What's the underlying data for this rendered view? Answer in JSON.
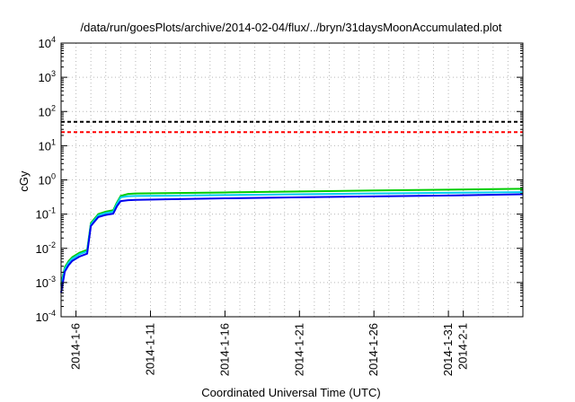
{
  "chart_data": {
    "type": "line",
    "title": "/data/run/goesPlots/archive/2014-02-04/flux/../bryn/31daysMoonAccumulated.plot",
    "xlabel": "Coordinated Universal Time (UTC)",
    "ylabel": "cGy",
    "yscale": "log",
    "ylim": [
      0.0001,
      10000
    ],
    "xlim": [
      "2014-01-05",
      "2014-02-05"
    ],
    "grid": true,
    "y_ticks": [
      {
        "value": 0.0001,
        "base": "10",
        "exp": "-4"
      },
      {
        "value": 0.001,
        "base": "10",
        "exp": "-3"
      },
      {
        "value": 0.01,
        "base": "10",
        "exp": "-2"
      },
      {
        "value": 0.1,
        "base": "10",
        "exp": "-1"
      },
      {
        "value": 1,
        "base": "10",
        "exp": "0"
      },
      {
        "value": 10,
        "base": "10",
        "exp": "1"
      },
      {
        "value": 100,
        "base": "10",
        "exp": "2"
      },
      {
        "value": 1000,
        "base": "10",
        "exp": "3"
      },
      {
        "value": 10000,
        "base": "10",
        "exp": "4"
      }
    ],
    "x_ticks": [
      {
        "date": "2014-01-06",
        "label": "2014-1-6"
      },
      {
        "date": "2014-01-11",
        "label": "2014-1-11"
      },
      {
        "date": "2014-01-16",
        "label": "2014-1-16"
      },
      {
        "date": "2014-01-21",
        "label": "2014-1-21"
      },
      {
        "date": "2014-01-26",
        "label": "2014-1-26"
      },
      {
        "date": "2014-01-31",
        "label": "2014-1-31"
      },
      {
        "date": "2014-02-01",
        "label": "2014-2-1"
      }
    ],
    "reference_lines": [
      {
        "value": 50,
        "color": "#000000",
        "style": "dashed"
      },
      {
        "value": 25,
        "color": "#ff0000",
        "style": "dashed"
      }
    ],
    "series": [
      {
        "color": "#00cc00",
        "x": [
          "2014-01-05 00:00",
          "2014-01-05 06:00",
          "2014-01-05 12:00",
          "2014-01-05 18:00",
          "2014-01-06 06:00",
          "2014-01-06 18:00",
          "2014-01-07 00:00",
          "2014-01-07 12:00",
          "2014-01-08 00:00",
          "2014-01-08 12:00",
          "2014-01-08 18:00",
          "2014-01-09 00:00",
          "2014-01-09 12:00",
          "2014-01-10 00:00",
          "2014-01-12 00:00",
          "2014-01-16 00:00",
          "2014-01-21 00:00",
          "2014-01-26 00:00",
          "2014-01-31 00:00",
          "2014-02-05 00:00"
        ],
        "y": [
          0.0009,
          0.0028,
          0.0042,
          0.0055,
          0.0075,
          0.009,
          0.055,
          0.1,
          0.118,
          0.13,
          0.22,
          0.34,
          0.39,
          0.4,
          0.41,
          0.43,
          0.46,
          0.49,
          0.52,
          0.55
        ]
      },
      {
        "color": "#00ccee",
        "x": [
          "2014-01-05 00:00",
          "2014-01-05 06:00",
          "2014-01-05 12:00",
          "2014-01-05 18:00",
          "2014-01-06 06:00",
          "2014-01-06 18:00",
          "2014-01-07 00:00",
          "2014-01-07 12:00",
          "2014-01-08 00:00",
          "2014-01-08 12:00",
          "2014-01-08 18:00",
          "2014-01-09 00:00",
          "2014-01-09 12:00",
          "2014-01-10 00:00",
          "2014-01-12 00:00",
          "2014-01-16 00:00",
          "2014-01-21 00:00",
          "2014-01-26 00:00",
          "2014-01-31 00:00",
          "2014-02-05 00:00"
        ],
        "y": [
          0.0008,
          0.0025,
          0.0038,
          0.005,
          0.0068,
          0.0082,
          0.05,
          0.092,
          0.108,
          0.118,
          0.2,
          0.31,
          0.335,
          0.34,
          0.345,
          0.36,
          0.38,
          0.4,
          0.42,
          0.44
        ]
      },
      {
        "color": "#0000ee",
        "x": [
          "2014-01-05 00:00",
          "2014-01-05 06:00",
          "2014-01-05 12:00",
          "2014-01-05 18:00",
          "2014-01-06 06:00",
          "2014-01-06 18:00",
          "2014-01-07 00:00",
          "2014-01-07 12:00",
          "2014-01-08 00:00",
          "2014-01-08 12:00",
          "2014-01-08 18:00",
          "2014-01-09 00:00",
          "2014-01-09 12:00",
          "2014-01-10 00:00",
          "2014-01-12 00:00",
          "2014-01-16 00:00",
          "2014-01-21 00:00",
          "2014-01-26 00:00",
          "2014-01-31 00:00",
          "2014-02-05 00:00"
        ],
        "y": [
          0.0005,
          0.0021,
          0.0032,
          0.0043,
          0.0058,
          0.007,
          0.045,
          0.082,
          0.095,
          0.103,
          0.17,
          0.24,
          0.255,
          0.26,
          0.27,
          0.29,
          0.31,
          0.33,
          0.35,
          0.38
        ]
      }
    ]
  }
}
